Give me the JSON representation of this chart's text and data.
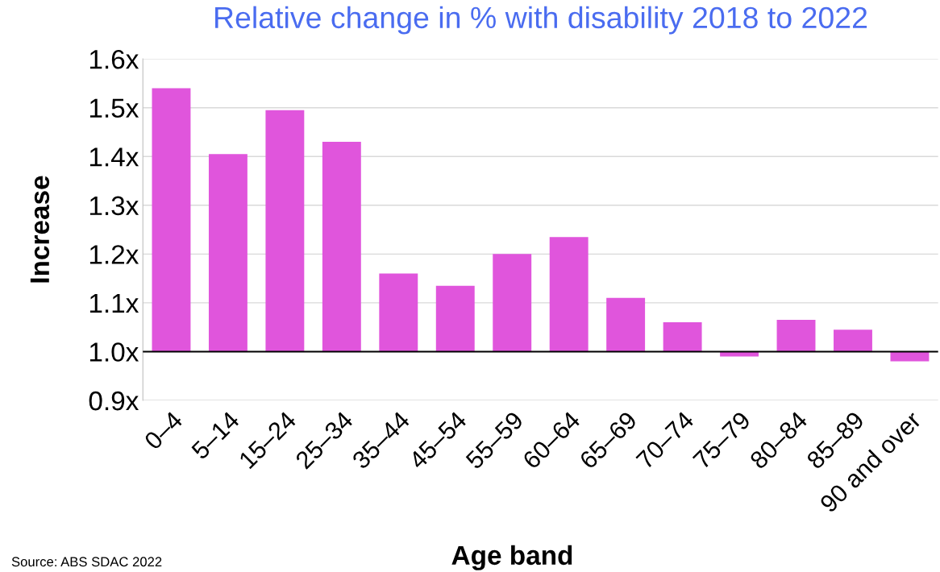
{
  "chart_data": {
    "type": "bar",
    "title": "Relative change in % with disability 2018 to 2022",
    "xlabel": "Age band",
    "ylabel": "Increase",
    "categories": [
      "0–4",
      "5–14",
      "15–24",
      "25–34",
      "35–44",
      "45–54",
      "55–59",
      "60–64",
      "65–69",
      "70–74",
      "75–79",
      "80–84",
      "85–89",
      "90 and over"
    ],
    "base": [
      1.0,
      1.0,
      1.0,
      1.0,
      1.0,
      1.0,
      1.0,
      1.0,
      1.0,
      1.0,
      1.0,
      1.0,
      1.0,
      1.0
    ],
    "values": [
      0.54,
      0.405,
      0.495,
      0.43,
      0.16,
      0.135,
      0.2,
      0.235,
      0.11,
      0.06,
      -0.01,
      0.065,
      0.045,
      -0.02
    ],
    "color": "#e055dc",
    "ylim": [
      0.9,
      1.6
    ],
    "yticks": [
      {
        "value": 0.9,
        "label": "0.9x"
      },
      {
        "value": 1.0,
        "label": "1.0x"
      },
      {
        "value": 1.1,
        "label": "1.1x"
      },
      {
        "value": 1.2,
        "label": "1.2x"
      },
      {
        "value": 1.3,
        "label": "1.3x"
      },
      {
        "value": 1.4,
        "label": "1.4x"
      },
      {
        "value": 1.5,
        "label": "1.5x"
      },
      {
        "value": 1.6,
        "label": "1.6x"
      }
    ],
    "grid": "y",
    "ref_lines": [
      {
        "axis": "y",
        "value": 1.0,
        "color": "#000000"
      }
    ],
    "annotations": [
      "Source: ABS SDAC 2022"
    ]
  }
}
